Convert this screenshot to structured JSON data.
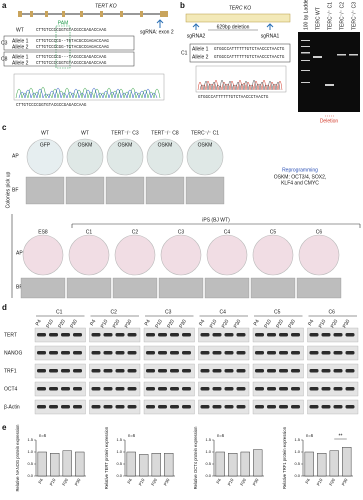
{
  "panel_a": {
    "letter": "a",
    "title": "TERT KO",
    "sgrna": "sgRNA: exon 2",
    "pam": "PAM",
    "wt_label": "WT",
    "wt_seq": "CTTGTCCCCGGTGTACGCCGAGACCAAG",
    "clones": [
      {
        "name": "C3",
        "alleles": [
          {
            "label": "Allele 1",
            "seq": "CTTGTCCCCG--TGTACGCCGAGACCAAG"
          },
          {
            "label": "Allele 2",
            "seq": "CTTGTCCCCGG-TGTACGCCGAGACCAAG"
          }
        ]
      },
      {
        "name": "C8",
        "alleles": [
          {
            "label": "Allele 1",
            "seq": "CTTGTCCCCG---TACGCCGAGACCAAG"
          },
          {
            "label": "Allele 2",
            "seq": "CTTGTCCCCGGTGTACGCCGAGACCAAG"
          }
        ]
      }
    ],
    "trace_seq": "CTTGTCCCCGGTGTACGCCGAGACCAAG"
  },
  "panel_b": {
    "letter": "b",
    "title": "TERC KO",
    "deletion": "629bp deletion",
    "sgrna2": "sgRNA2",
    "sgrna1": "sgRNA1",
    "clone": "C1",
    "alleles": [
      {
        "label": "Allele 1",
        "seq": "GTGGCCATTTTTTGTCTAACCCTAACTG"
      },
      {
        "label": "Allele 2",
        "seq": "GTGGCCATTTTTTGTCTAACCCTAACTG"
      }
    ],
    "trace_seq": "GTGGCCATTTTTTGTCTAACCCTAACTG",
    "gel_lanes": [
      "100 bp Ladder",
      "TERC WT",
      "TERC⁻/⁻ C1",
      "TERC⁻/⁻ C2",
      "TERC⁻/⁻ C3"
    ],
    "gel_note": "Deletion"
  },
  "panel_c": {
    "letter": "c",
    "row_ap": "AP",
    "row_bf": "BF",
    "top_headers": [
      "WT",
      "WT",
      "TERT⁻/⁻ C3",
      "TERT⁻/⁻ C8",
      "TERC⁻/⁻ C1"
    ],
    "top_plates": [
      "GFP",
      "OSKM",
      "OSKM",
      "OSKM",
      "OSKM"
    ],
    "reprogramming": "Reprogramming",
    "oskm_def": [
      "OSKM: OCT3/4, SOX2,",
      "KLF4 and CMYC"
    ],
    "pickup": "Colonies pick up",
    "ips": "iPS (BJ WT)",
    "bottom_plates": [
      "ES8",
      "C1",
      "C2",
      "C3",
      "C4",
      "C5",
      "C6"
    ]
  },
  "panel_d": {
    "letter": "d",
    "clones": [
      "C1",
      "C2",
      "C3",
      "C4",
      "C5",
      "C6"
    ],
    "passages": [
      "P4",
      "P10",
      "P20",
      "P30"
    ],
    "proteins": [
      "TERT",
      "NANOG",
      "TRF1",
      "OCT4",
      "β-Actin"
    ]
  },
  "panel_e": {
    "letter": "e"
  },
  "chart_data": [
    {
      "type": "bar",
      "ylabel": "Relative NANOG protein expression",
      "note": "n=6",
      "categories": [
        "P4",
        "P10",
        "P20",
        "P30"
      ],
      "values": [
        1.0,
        0.95,
        1.05,
        1.0
      ],
      "color": "#d9d9d9",
      "ylim": [
        0,
        1.5
      ],
      "yticks": [
        {
          "value": 0,
          "label": "0.0"
        },
        {
          "value": 0.5,
          "label": "0.5"
        },
        {
          "value": 1,
          "label": "1.0"
        },
        {
          "value": 1.5,
          "label": "1.5"
        }
      ]
    },
    {
      "type": "bar",
      "ylabel": "Relative TERT protein expression",
      "note": "n=6",
      "categories": [
        "P4",
        "P10",
        "P20",
        "P30"
      ],
      "values": [
        1.0,
        0.9,
        0.95,
        0.95
      ],
      "color": "#d9d9d9",
      "ylim": [
        0,
        1.5
      ],
      "yticks": [
        {
          "value": 0,
          "label": "0.0"
        },
        {
          "value": 0.5,
          "label": "0.5"
        },
        {
          "value": 1,
          "label": "1.0"
        },
        {
          "value": 1.5,
          "label": "1.5"
        }
      ]
    },
    {
      "type": "bar",
      "ylabel": "Relative OCT4 protein expression",
      "note": "n=6",
      "categories": [
        "P4",
        "P10",
        "P20",
        "P30"
      ],
      "values": [
        1.0,
        0.95,
        1.0,
        1.1
      ],
      "color": "#d9d9d9",
      "ylim": [
        0,
        1.5
      ],
      "yticks": [
        {
          "value": 0,
          "label": "0.0"
        },
        {
          "value": 0.5,
          "label": "0.5"
        },
        {
          "value": 1,
          "label": "1.0"
        },
        {
          "value": 1.5,
          "label": "1.5"
        }
      ]
    },
    {
      "type": "bar",
      "ylabel": "Relative TRF1 protein expression",
      "note": "n=6",
      "annotation": "**",
      "categories": [
        "P4",
        "P10",
        "P20",
        "P30"
      ],
      "values": [
        1.0,
        0.95,
        1.05,
        1.2
      ],
      "color": "#d9d9d9",
      "ylim": [
        0,
        1.5
      ],
      "yticks": [
        {
          "value": 0,
          "label": "0.0"
        },
        {
          "value": 0.5,
          "label": "0.5"
        },
        {
          "value": 1,
          "label": "1.0"
        },
        {
          "value": 1.5,
          "label": "1.5"
        }
      ]
    }
  ]
}
